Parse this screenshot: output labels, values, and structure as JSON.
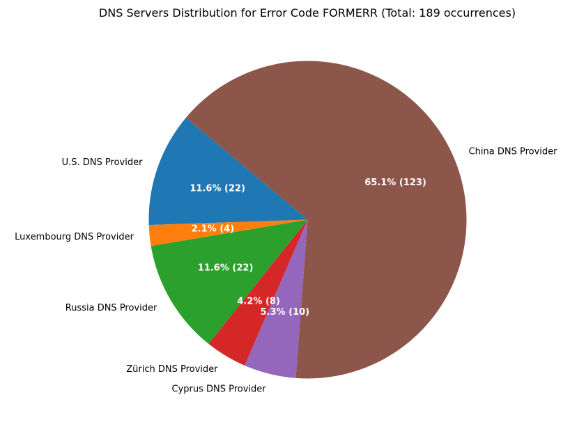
{
  "chart_data": {
    "type": "pie",
    "title": "DNS Servers Distribution for Error Code FORMERR (Total: 189 occurrences)",
    "total": 189,
    "start_angle_deg": 140,
    "direction": "counterclockwise",
    "slices": [
      {
        "label": "U.S. DNS Provider",
        "value": 22,
        "percent_label": "11.6% (22)",
        "color": "#1f77b4"
      },
      {
        "label": "Luxembourg DNS Provider",
        "value": 4,
        "percent_label": "2.1% (4)",
        "color": "#ff7f0e"
      },
      {
        "label": "Russia DNS Provider",
        "value": 22,
        "percent_label": "11.6% (22)",
        "color": "#2ca02c"
      },
      {
        "label": "Zürich DNS Provider",
        "value": 8,
        "percent_label": "4.2% (8)",
        "color": "#d62728"
      },
      {
        "label": "Cyprus DNS Provider",
        "value": 10,
        "percent_label": "5.3% (10)",
        "color": "#9467bd"
      },
      {
        "label": "China DNS Provider",
        "value": 123,
        "percent_label": "65.1% (123)",
        "color": "#8c564b"
      }
    ]
  }
}
